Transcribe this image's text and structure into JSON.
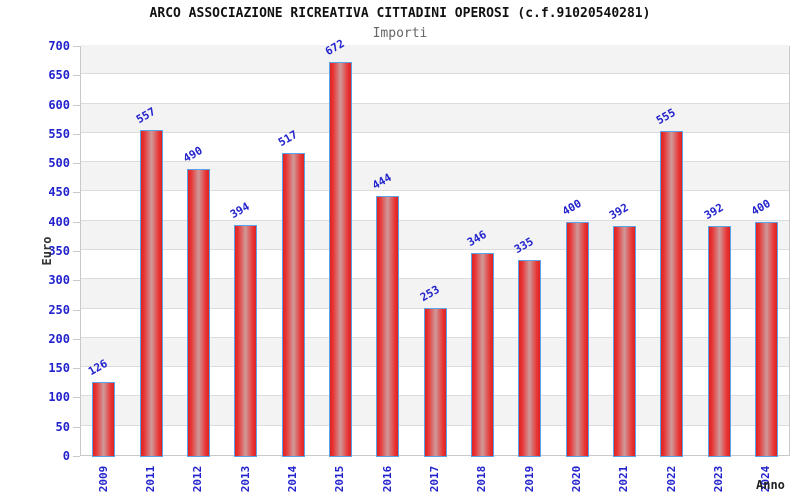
{
  "header": {
    "title": "ARCO ASSOCIAZIONE RICREATIVA CITTADINI OPEROSI (c.f.91020540281)",
    "subtitle": "Importi"
  },
  "chart_data": {
    "type": "bar",
    "title": "ARCO ASSOCIAZIONE RICREATIVA CITTADINI OPEROSI (c.f.91020540281)",
    "subtitle": "Importi",
    "xlabel": "Anno",
    "ylabel": "Euro",
    "categories": [
      "2009",
      "2011",
      "2012",
      "2013",
      "2014",
      "2015",
      "2016",
      "2017",
      "2018",
      "2019",
      "2020",
      "2021",
      "2022",
      "2023",
      "2024"
    ],
    "values": [
      126,
      557,
      490,
      394,
      517,
      672,
      444,
      253,
      346,
      335,
      400,
      392,
      555,
      392,
      400
    ],
    "ylim": [
      0,
      700
    ],
    "ytick_step": 50,
    "grid": "horizontal-bands-alternating",
    "legend": "none"
  },
  "colors": {
    "axis_text_blue": "#2323cd",
    "bar_edge_red": "#dd2424",
    "bar_mid_red": "#e83434",
    "bar_highlight": "#cf9a9a",
    "bar_border_blue": "#5ba3e8",
    "band_gray": "#f3f3f3",
    "band_white": "#ffffff",
    "gridline_gray": "#dcdcdc",
    "plot_border_gray": "#c9c9c9",
    "title_color": "#111111",
    "subtitle_color": "#666666",
    "axis_label_color": "#333333"
  }
}
